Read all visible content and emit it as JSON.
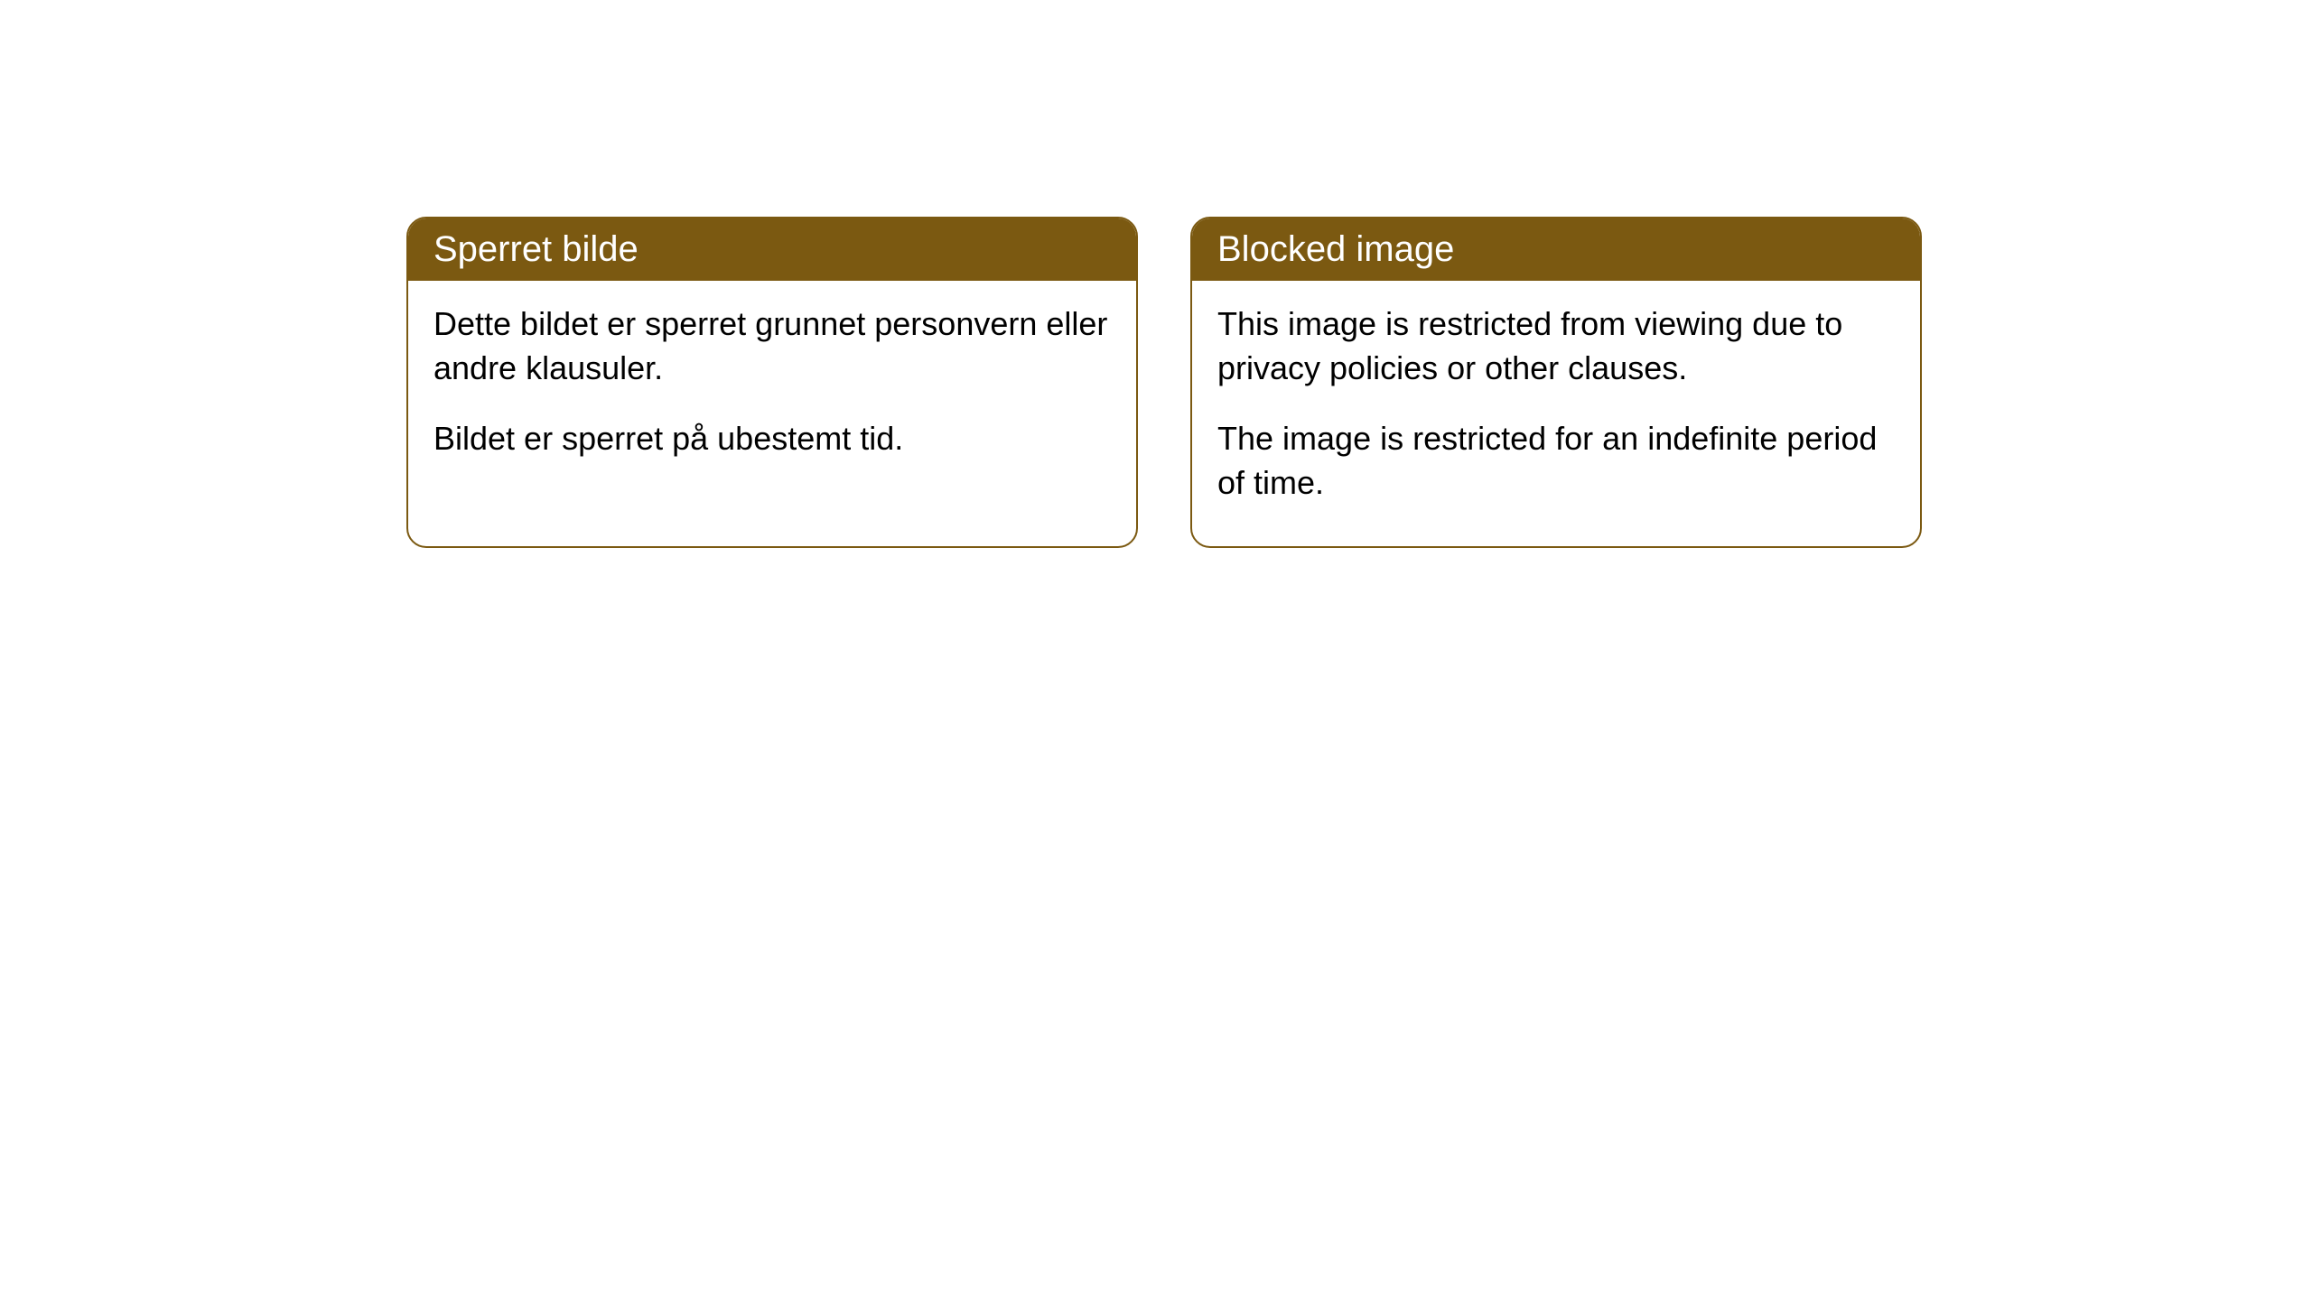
{
  "cards": [
    {
      "title": "Sperret bilde",
      "paragraph1": "Dette bildet er sperret grunnet personvern eller andre klausuler.",
      "paragraph2": "Bildet er sperret på ubestemt tid."
    },
    {
      "title": "Blocked image",
      "paragraph1": "This image is restricted from viewing due to privacy policies or other clauses.",
      "paragraph2": "The image is restricted for an indefinite period of time."
    }
  ],
  "style": {
    "header_background_color": "#7b5911",
    "header_text_color": "#ffffff",
    "border_color": "#7b5911",
    "body_background_color": "#ffffff",
    "body_text_color": "#000000",
    "border_radius": 22,
    "header_fontsize": 40,
    "body_fontsize": 36
  }
}
